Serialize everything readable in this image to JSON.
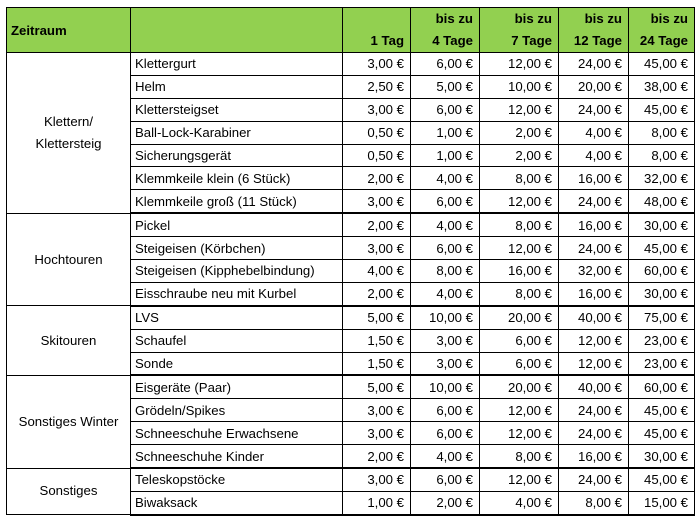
{
  "header": {
    "first": "Zeitraum",
    "columns": [
      {
        "top": "",
        "bottom": "1 Tag"
      },
      {
        "top": "bis zu",
        "bottom": "4 Tage"
      },
      {
        "top": "bis zu",
        "bottom": "7 Tage"
      },
      {
        "top": "bis zu",
        "bottom": "12 Tage"
      },
      {
        "top": "bis zu",
        "bottom": "24 Tage"
      }
    ]
  },
  "groups": [
    {
      "name_lines": [
        "Klettern/",
        "Klettersteig"
      ],
      "rows": [
        {
          "item": "Klettergurt",
          "prices": [
            "3,00 €",
            "6,00 €",
            "12,00 €",
            "24,00 €",
            "45,00 €"
          ]
        },
        {
          "item": "Helm",
          "prices": [
            "2,50 €",
            "5,00 €",
            "10,00 €",
            "20,00 €",
            "38,00 €"
          ]
        },
        {
          "item": "Klettersteigset",
          "prices": [
            "3,00 €",
            "6,00 €",
            "12,00 €",
            "24,00 €",
            "45,00 €"
          ]
        },
        {
          "item": "Ball-Lock-Karabiner",
          "prices": [
            "0,50 €",
            "1,00 €",
            "2,00 €",
            "4,00 €",
            "8,00 €"
          ]
        },
        {
          "item": "Sicherungsgerät",
          "prices": [
            "0,50 €",
            "1,00 €",
            "2,00 €",
            "4,00 €",
            "8,00 €"
          ]
        },
        {
          "item": "Klemmkeile klein (6 Stück)",
          "prices": [
            "2,00 €",
            "4,00 €",
            "8,00 €",
            "16,00 €",
            "32,00 €"
          ]
        },
        {
          "item": "Klemmkeile groß (11 Stück)",
          "prices": [
            "3,00 €",
            "6,00 €",
            "12,00 €",
            "24,00 €",
            "48,00 €"
          ]
        }
      ]
    },
    {
      "name_lines": [
        "Hochtouren"
      ],
      "rows": [
        {
          "item": "Pickel",
          "prices": [
            "2,00 €",
            "4,00 €",
            "8,00 €",
            "16,00 €",
            "30,00 €"
          ]
        },
        {
          "item": "Steigeisen (Körbchen)",
          "prices": [
            "3,00 €",
            "6,00 €",
            "12,00 €",
            "24,00 €",
            "45,00 €"
          ]
        },
        {
          "item": "Steigeisen (Kipphebelbindung)",
          "prices": [
            "4,00 €",
            "8,00 €",
            "16,00 €",
            "32,00 €",
            "60,00 €"
          ]
        },
        {
          "item": "Eisschraube neu mit Kurbel",
          "prices": [
            "2,00 €",
            "4,00 €",
            "8,00 €",
            "16,00 €",
            "30,00 €"
          ]
        }
      ]
    },
    {
      "name_lines": [
        "Skitouren"
      ],
      "rows": [
        {
          "item": "LVS",
          "prices": [
            "5,00 €",
            "10,00 €",
            "20,00 €",
            "40,00 €",
            "75,00 €"
          ]
        },
        {
          "item": "Schaufel",
          "prices": [
            "1,50 €",
            "3,00 €",
            "6,00 €",
            "12,00 €",
            "23,00 €"
          ]
        },
        {
          "item": "Sonde",
          "prices": [
            "1,50 €",
            "3,00 €",
            "6,00 €",
            "12,00 €",
            "23,00 €"
          ]
        }
      ]
    },
    {
      "name_lines": [
        "Sonstiges Winter"
      ],
      "rows": [
        {
          "item": "Eisgeräte (Paar)",
          "prices": [
            "5,00 €",
            "10,00 €",
            "20,00 €",
            "40,00 €",
            "60,00 €"
          ]
        },
        {
          "item": "Grödeln/Spikes",
          "prices": [
            "3,00 €",
            "6,00 €",
            "12,00 €",
            "24,00 €",
            "45,00 €"
          ]
        },
        {
          "item": "Schneeschuhe Erwachsene",
          "prices": [
            "3,00 €",
            "6,00 €",
            "12,00 €",
            "24,00 €",
            "45,00 €"
          ]
        },
        {
          "item": "Schneeschuhe Kinder",
          "prices": [
            "2,00 €",
            "4,00 €",
            "8,00 €",
            "16,00 €",
            "30,00 €"
          ]
        }
      ]
    },
    {
      "name_lines": [
        "Sonstiges"
      ],
      "rows": [
        {
          "item": "Teleskopstöcke",
          "prices": [
            "3,00 €",
            "6,00 €",
            "12,00 €",
            "24,00 €",
            "45,00 €"
          ]
        },
        {
          "item": "Biwaksack",
          "prices": [
            "1,00 €",
            "2,00 €",
            "4,00 €",
            "8,00 €",
            "15,00 €"
          ]
        }
      ]
    }
  ]
}
